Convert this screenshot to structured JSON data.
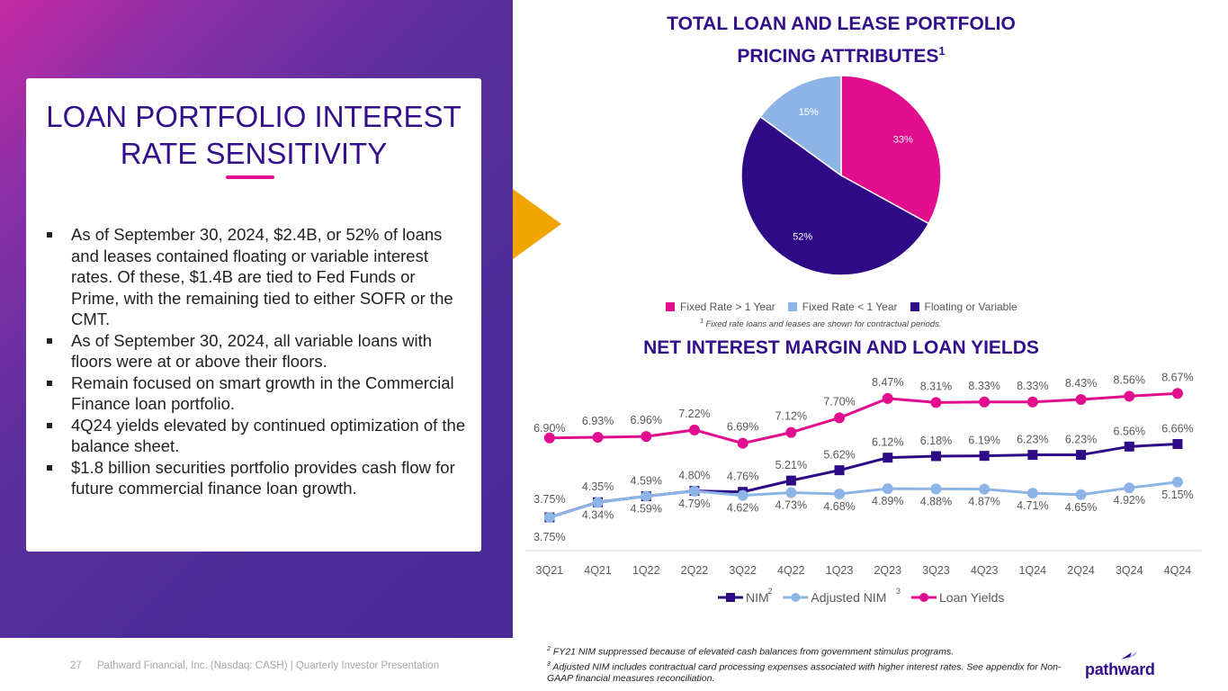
{
  "left_panel": {
    "title": "LOAN PORTFOLIO INTEREST RATE SENSITIVITY",
    "bullets": [
      "As of September 30, 2024, $2.4B, or 52% of loans and leases contained floating or variable interest rates. Of these, $1.4B are tied to Fed Funds or Prime, with the remaining tied to either SOFR or the CMT.",
      "As of September 30, 2024, all variable loans with floors were at or above their floors.",
      "Remain focused on smart growth in the Commercial Finance loan portfolio.",
      "4Q24 yields elevated by continued optimization of the balance sheet.",
      "$1.8 billion securities portfolio provides cash flow for future commercial finance loan growth."
    ]
  },
  "colors": {
    "magenta": "#e20c8f",
    "light_blue": "#8db4e6",
    "dark_purple": "#2e0a87",
    "nim_line": "#2e0a87",
    "gold": "#f0a500",
    "title_purple": "#33108a"
  },
  "chart_data": [
    {
      "type": "pie",
      "title": "TOTAL LOAN AND LEASE PORTFOLIO PRICING ATTRIBUTES",
      "title_sup": "1",
      "categories": [
        "Fixed Rate > 1 Year",
        "Floating or Variable",
        "Fixed Rate < 1 Year"
      ],
      "values": [
        33,
        52,
        15
      ],
      "labels": [
        "33%",
        "52%",
        "15%"
      ],
      "colors": [
        "#e20c8f",
        "#2e0a87",
        "#8db4e6"
      ],
      "legend": [
        {
          "label": "Fixed Rate > 1 Year",
          "color": "#e20c8f"
        },
        {
          "label": "Fixed Rate < 1 Year",
          "color": "#8db4e6"
        },
        {
          "label": "Floating or Variable",
          "color": "#2e0a87"
        }
      ],
      "footnote_sup": "1",
      "footnote": " Fixed rate loans and leases are shown for contractual periods."
    },
    {
      "type": "line",
      "title": "NET INTEREST MARGIN AND LOAN YIELDS",
      "categories": [
        "3Q21",
        "4Q21",
        "1Q22",
        "2Q22",
        "3Q22",
        "4Q22",
        "1Q23",
        "2Q23",
        "3Q23",
        "4Q23",
        "1Q24",
        "2Q24",
        "3Q24",
        "4Q24"
      ],
      "ylim": [
        3.0,
        9.0
      ],
      "series": [
        {
          "name": "NIM",
          "sup": "2",
          "color": "#2e0a87",
          "marker": "square",
          "values": [
            3.75,
            4.35,
            4.59,
            4.8,
            4.76,
            5.21,
            5.62,
            6.12,
            6.18,
            6.19,
            6.23,
            6.23,
            6.56,
            6.66
          ],
          "labels": [
            "3.75%",
            "4.35%",
            "4.59%",
            "4.80%",
            "4.76%",
            "5.21%",
            "5.62%",
            "6.12%",
            "6.18%",
            "6.19%",
            "6.23%",
            "6.23%",
            "6.56%",
            "6.66%"
          ]
        },
        {
          "name": "Adjusted NIM",
          "sup": "3",
          "color": "#8db4e6",
          "marker": "circle",
          "values": [
            3.75,
            4.34,
            4.59,
            4.79,
            4.62,
            4.73,
            4.68,
            4.89,
            4.88,
            4.87,
            4.71,
            4.65,
            4.92,
            5.15
          ],
          "labels": [
            "3.75%",
            "4.34%",
            "4.59%",
            "4.79%",
            "4.62%",
            "4.73%",
            "4.68%",
            "4.89%",
            "4.88%",
            "4.87%",
            "4.71%",
            "4.65%",
            "4.92%",
            "5.15%"
          ]
        },
        {
          "name": "Loan Yields",
          "sup": "",
          "color": "#e20c8f",
          "marker": "circle",
          "values": [
            6.9,
            6.93,
            6.96,
            7.22,
            6.69,
            7.12,
            7.7,
            8.47,
            8.31,
            8.33,
            8.33,
            8.43,
            8.56,
            8.67
          ],
          "labels": [
            "6.90%",
            "6.93%",
            "6.96%",
            "7.22%",
            "6.69%",
            "7.12%",
            "7.70%",
            "8.47%",
            "8.31%",
            "8.33%",
            "8.33%",
            "8.43%",
            "8.56%",
            "8.67%"
          ]
        }
      ]
    }
  ],
  "footer": {
    "page_number": "27",
    "company_text": "Pathward Financial, Inc. (Nasdaq: CASH) | Quarterly Investor Presentation",
    "footnote_2_sup": "2",
    "footnote_2": " FY21 NIM suppressed because of elevated cash balances from government stimulus programs.",
    "footnote_3_sup": "3",
    "footnote_3": " Adjusted NIM includes contractual card processing expenses associated with higher interest rates. See appendix for Non-GAAP financial measures reconciliation.",
    "logo_text": "pathward"
  }
}
